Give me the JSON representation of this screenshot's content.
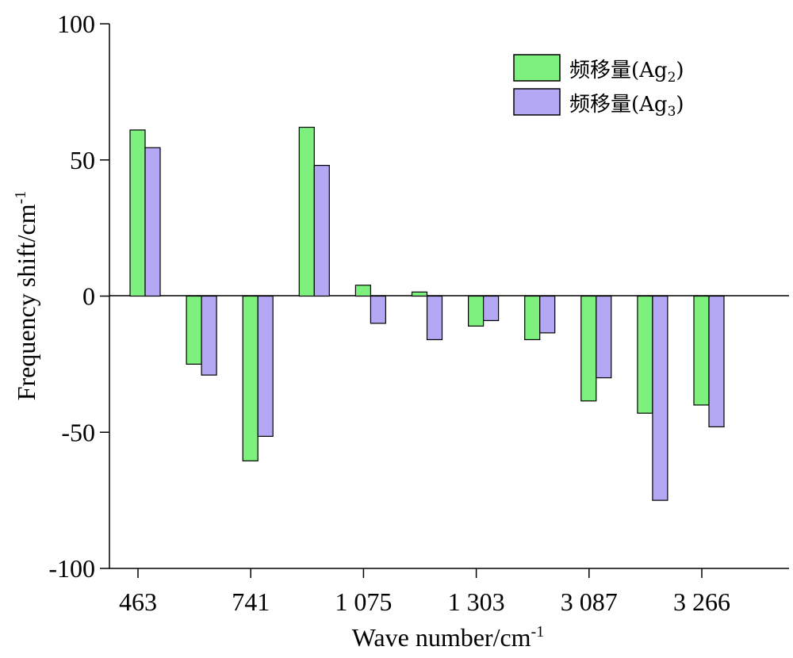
{
  "chart_data": {
    "type": "bar",
    "xlabel": "Wave number/cm",
    "xlabel_sup": "-1",
    "ylabel": "Frequency shift/cm",
    "ylabel_sup": "-1",
    "ylim": [
      -100,
      100
    ],
    "yticks": [
      "100",
      "50",
      "0",
      "-50",
      "-100"
    ],
    "ytick_values": [
      100,
      50,
      0,
      -50,
      -100
    ],
    "xtick_labels": [
      "463",
      "741",
      "1 075",
      "1 303",
      "3 087",
      "3 266"
    ],
    "xtick_slots": [
      0,
      2,
      4,
      6,
      8,
      10
    ],
    "categories_count": 11,
    "legend_position": "top-right",
    "grid": false,
    "series": [
      {
        "name": "频移量(Ag",
        "name_sub": "2",
        "name_close": ")",
        "color": "#7ef07e",
        "values": [
          61,
          -25,
          -60.5,
          62,
          4,
          1.5,
          -11,
          -16,
          -38.5,
          -43,
          -40
        ]
      },
      {
        "name": "频移量(Ag",
        "name_sub": "3",
        "name_close": ")",
        "color": "#b4a8f5",
        "values": [
          54.5,
          -29,
          -51.5,
          48,
          -10,
          -16,
          -9,
          -13.5,
          -30,
          -75,
          -48
        ]
      }
    ]
  }
}
